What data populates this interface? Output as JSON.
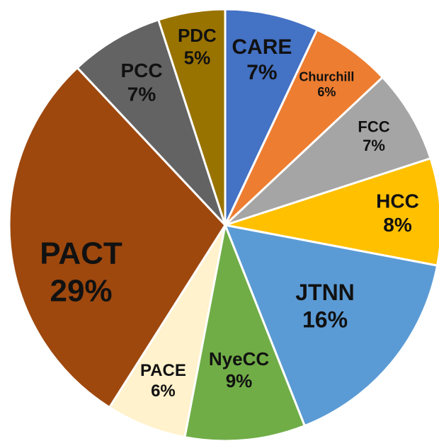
{
  "chart_data": {
    "type": "pie",
    "categories": [
      "CARE",
      "Churchill",
      "FCC",
      "HCC",
      "JTNN",
      "NyeCC",
      "PACE",
      "PACT",
      "PCC",
      "PDC"
    ],
    "values": [
      7,
      6,
      7,
      8,
      16,
      9,
      6,
      29,
      7,
      5
    ],
    "value_labels": [
      "7%",
      "6%",
      "7%",
      "8%",
      "16%",
      "9%",
      "6%",
      "29%",
      "7%",
      "5%"
    ],
    "colors": [
      "#4472c4",
      "#ed7d31",
      "#a5a5a5",
      "#ffc000",
      "#5b9bd5",
      "#70ad47",
      "#fff2cc",
      "#9e480e",
      "#636363",
      "#997300"
    ]
  }
}
